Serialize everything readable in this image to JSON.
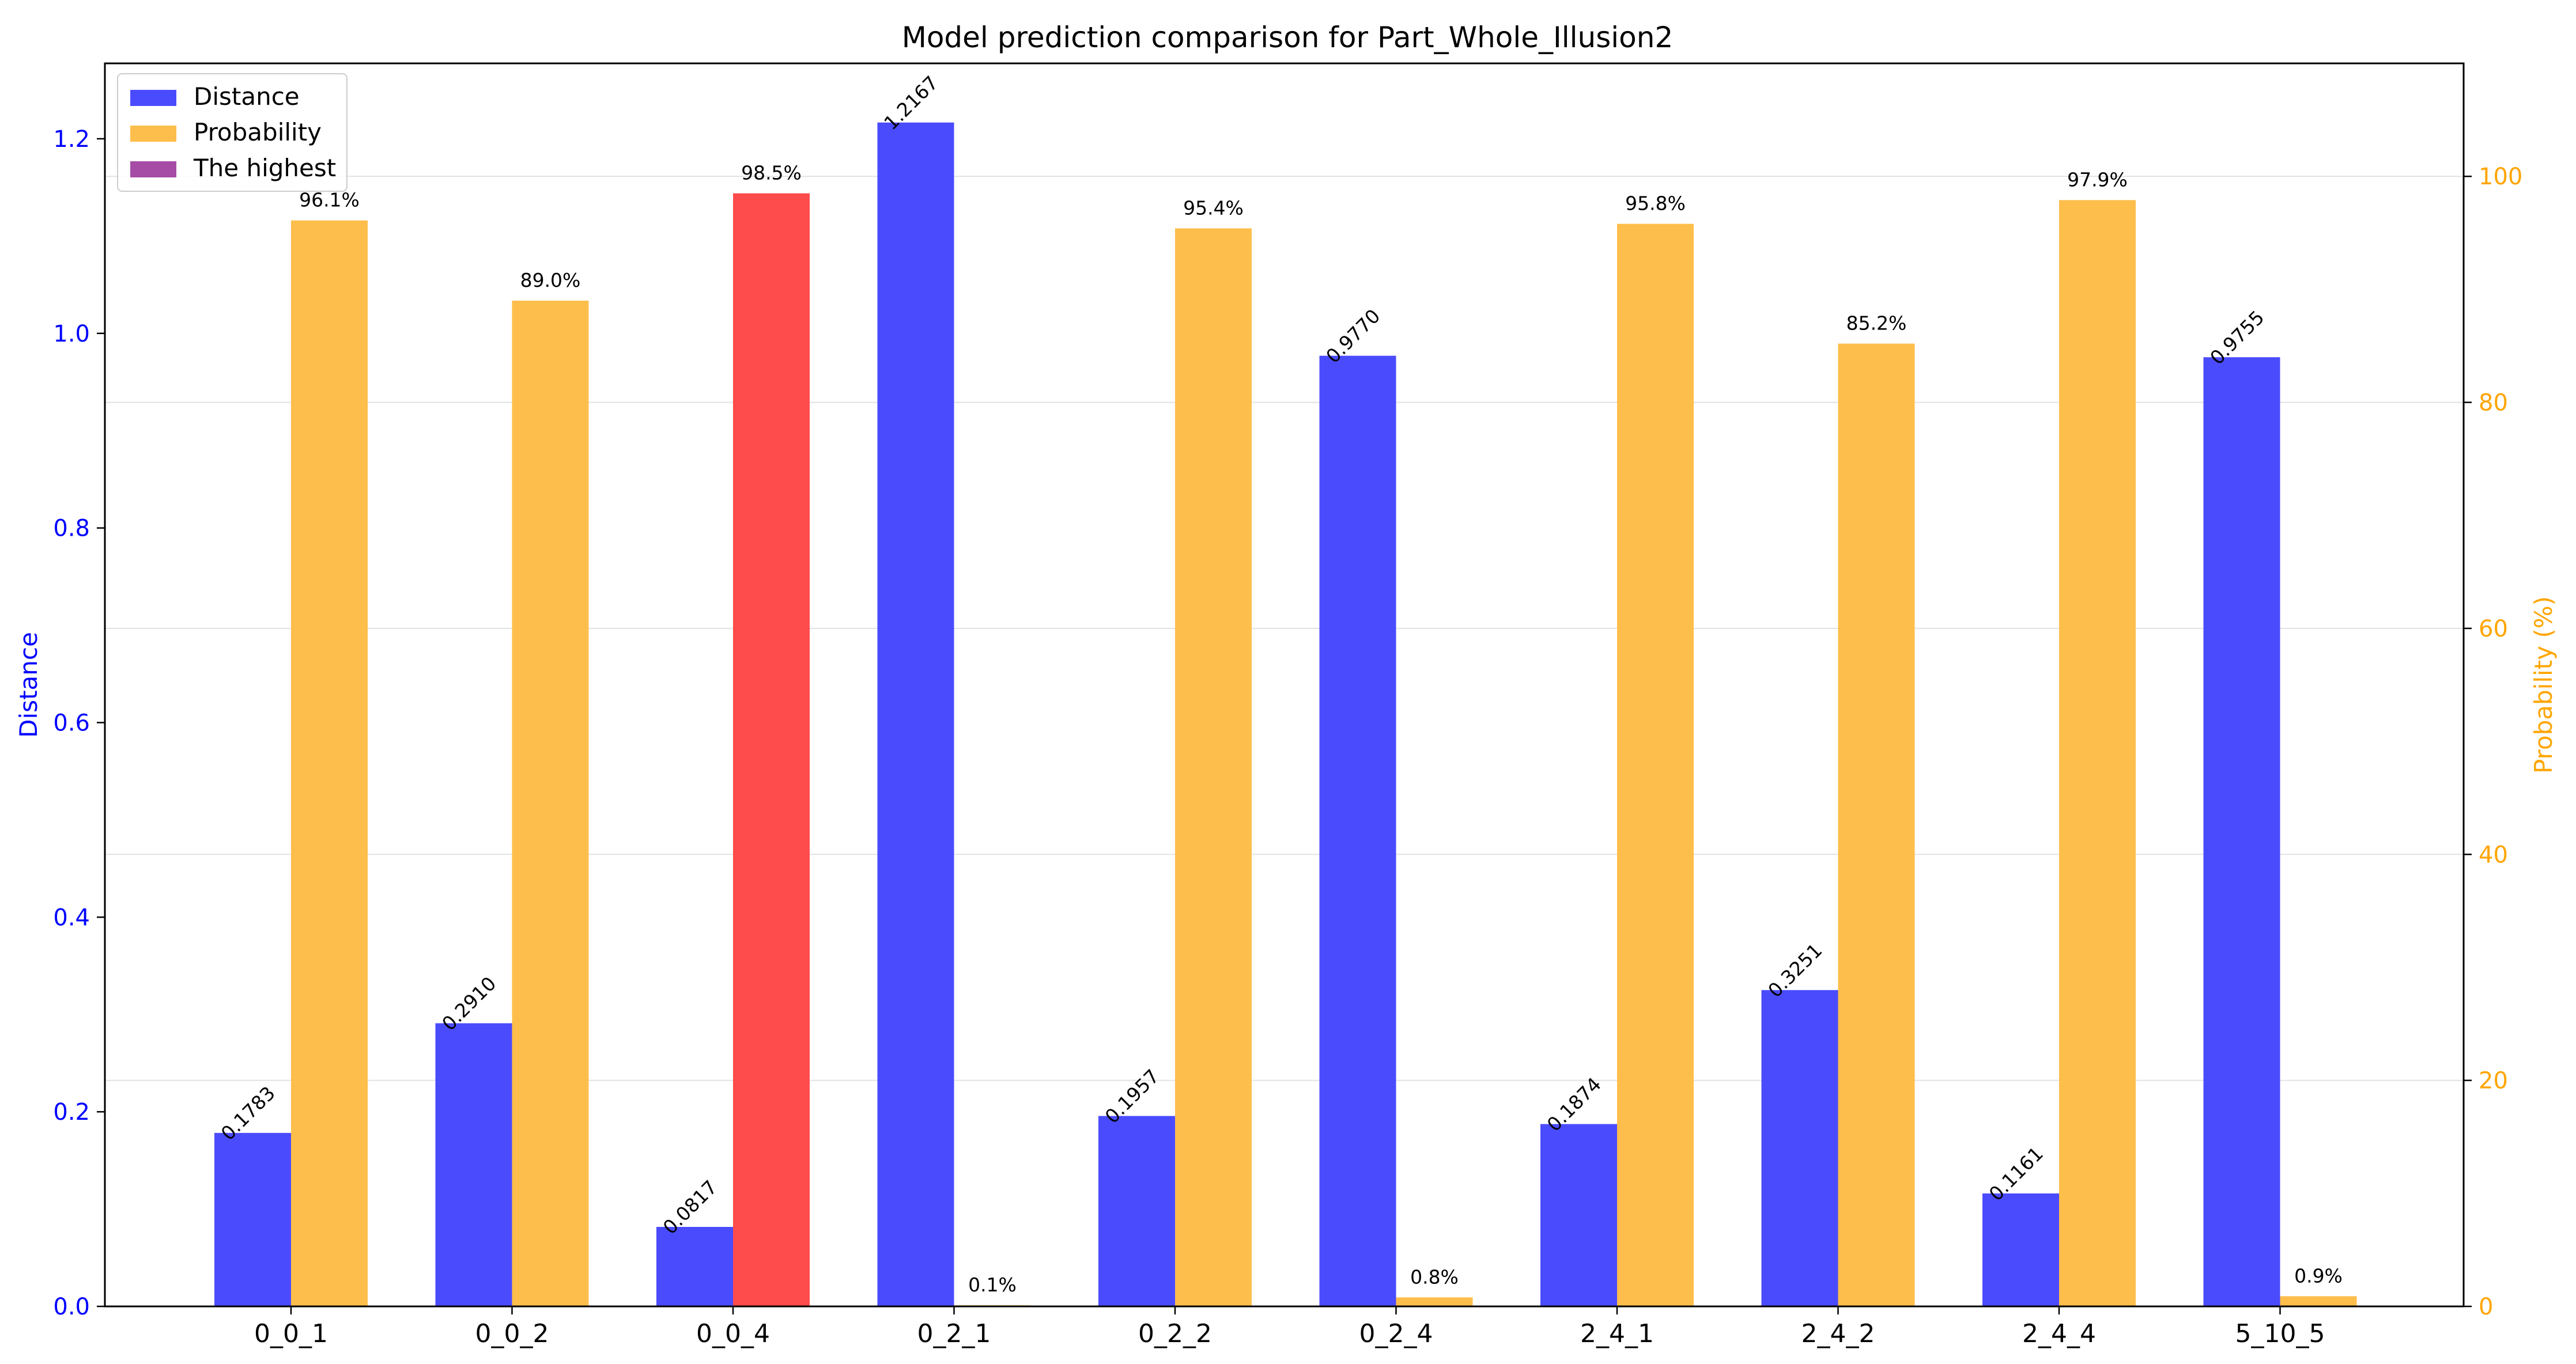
{
  "chart_data": {
    "type": "bar",
    "title": "Model prediction comparison for Part_Whole_Illusion2",
    "categories": [
      "0_0_1",
      "0_0_2",
      "0_0_4",
      "0_2_1",
      "0_2_2",
      "0_2_4",
      "2_4_1",
      "2_4_2",
      "2_4_4",
      "5_10_5"
    ],
    "series": [
      {
        "name": "Distance",
        "axis": "left",
        "color": "#4b4bfe",
        "values": [
          0.1783,
          0.291,
          0.0817,
          1.2167,
          0.1957,
          0.977,
          0.1874,
          0.3251,
          0.1161,
          0.9755
        ],
        "labels": [
          "0.1783",
          "0.2910",
          "0.0817",
          "1.2167",
          "0.1957",
          "0.9770",
          "0.1874",
          "0.3251",
          "0.1161",
          "0.9755"
        ]
      },
      {
        "name": "Probability",
        "axis": "right",
        "color": "#febe4b",
        "values": [
          96.1,
          89.0,
          98.5,
          0.1,
          95.4,
          0.8,
          95.8,
          85.2,
          97.9,
          0.9
        ],
        "labels": [
          "96.1%",
          "89.0%",
          "98.5%",
          "0.1%",
          "95.4%",
          "0.8%",
          "95.8%",
          "85.2%",
          "97.9%",
          "0.9%"
        ]
      }
    ],
    "highlight": {
      "series": "Probability",
      "index": 2,
      "color": "#fe4b4b"
    },
    "legend": {
      "placement": "top-left",
      "entries": [
        {
          "label": "Distance",
          "color": "#4b4bfe"
        },
        {
          "label": "Probability",
          "color": "#febe4b"
        },
        {
          "label": "The highest",
          "color": "#a64ca6"
        }
      ]
    },
    "ylabel_left": "Distance",
    "ylabel_right": "Probability (%)",
    "ylim_left": [
      0,
      1.2775
    ],
    "ylim_right": [
      0,
      110
    ],
    "yticks_left": [
      "0.0",
      "0.2",
      "0.4",
      "0.6",
      "0.8",
      "1.0",
      "1.2"
    ],
    "yticks_right": [
      "0",
      "20",
      "40",
      "60",
      "80",
      "100"
    ],
    "left_axis_color": "#0000ff",
    "right_axis_color": "#ffa500",
    "grid": "horizontal (right axis)"
  }
}
